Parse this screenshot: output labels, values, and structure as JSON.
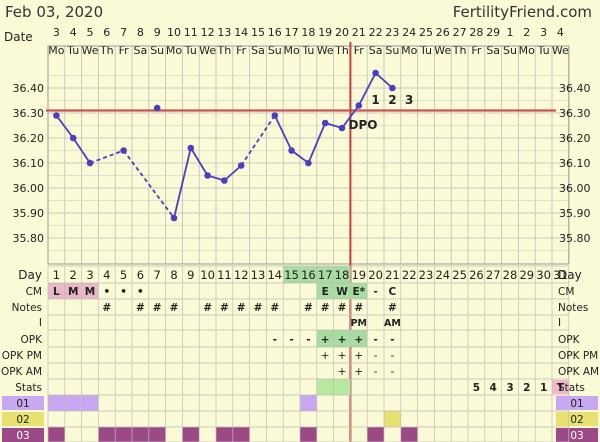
{
  "header": {
    "date": "Feb 03, 2020",
    "site": "FertilityFriend.com"
  },
  "chart_data": {
    "type": "line",
    "title": "",
    "ylim": [
      35.7,
      36.5
    ],
    "yticks": [
      "36.40",
      "36.30",
      "36.20",
      "36.10",
      "36.00",
      "35.90",
      "35.80"
    ],
    "row_labels": {
      "date": "Date",
      "day": "Day",
      "cm": "CM",
      "notes": "Notes",
      "i": "I",
      "opk": "OPK",
      "opk_pm": "OPK PM",
      "opk_am": "OPK AM",
      "stats": "Stats",
      "r01": "01",
      "r02": "02",
      "r03": "03"
    },
    "dates": [
      "3",
      "4",
      "5",
      "6",
      "7",
      "8",
      "9",
      "10",
      "11",
      "12",
      "13",
      "14",
      "15",
      "16",
      "17",
      "18",
      "19",
      "20",
      "21",
      "22",
      "23",
      "24",
      "25",
      "26",
      "27",
      "28",
      "29",
      "1",
      "2",
      "3",
      "4"
    ],
    "weekdays": [
      "Mo",
      "Tu",
      "We",
      "Th",
      "Fr",
      "Sa",
      "Su",
      "Mo",
      "Tu",
      "We",
      "Th",
      "Fr",
      "Sa",
      "Su",
      "Mo",
      "Tu",
      "We",
      "Th",
      "Fr",
      "Sa",
      "Su",
      "Mo",
      "Tu",
      "We",
      "Th",
      "Fr",
      "Sa",
      "Su",
      "Mo",
      "Tu",
      "We"
    ],
    "cycle_days": [
      "1",
      "2",
      "3",
      "4",
      "5",
      "6",
      "7",
      "8",
      "9",
      "10",
      "11",
      "12",
      "13",
      "14",
      "15",
      "16",
      "17",
      "18",
      "19",
      "20",
      "21",
      "22",
      "23",
      "24",
      "25",
      "26",
      "27",
      "28",
      "29",
      "30",
      "31"
    ],
    "temps": [
      36.29,
      36.2,
      36.1,
      null,
      36.15,
      null,
      36.32,
      35.88,
      36.16,
      36.05,
      36.03,
      36.09,
      null,
      36.29,
      36.15,
      36.1,
      36.26,
      36.24,
      36.33,
      36.46,
      36.4
    ],
    "discarded_day": 7,
    "coverline": 36.31,
    "ovulation_day": 18,
    "dpo_labels": [
      {
        "day": 20,
        "text": "1"
      },
      {
        "day": 21,
        "text": "2"
      },
      {
        "day": 22,
        "text": "3"
      }
    ],
    "dpo_text": "DPO",
    "cm": {
      "1": "L",
      "2": "M",
      "3": "M",
      "4": "•",
      "5": "•",
      "6": "•",
      "17": "E",
      "18": "W",
      "19": "E*",
      "20": "-",
      "21": "C"
    },
    "notes": {
      "4": "#",
      "6": "#",
      "7": "#",
      "8": "#",
      "10": "#",
      "11": "#",
      "12": "#",
      "13": "#",
      "14": "#",
      "16": "#",
      "17": "#",
      "18": "#",
      "19": "#",
      "21": "#"
    },
    "intercourse": {
      "19": "PM",
      "21": "AM"
    },
    "opk": {
      "14": "-",
      "15": "-",
      "16": "-",
      "17": "+",
      "18": "+",
      "19": "+",
      "20": "-",
      "21": "-"
    },
    "opk_pm": {
      "17": "+",
      "18": "+",
      "19": "+",
      "20": "-",
      "21": "-"
    },
    "opk_am": {
      "18": "+",
      "19": "+",
      "20": "-",
      "21": "-"
    },
    "stats": {
      "26": "5",
      "27": "4",
      "28": "3",
      "29": "2",
      "30": "1",
      "31": "T"
    },
    "colors": {
      "bg": "#fafad6",
      "grid": "#bdbdbd",
      "temp_line": "#4a3fbf",
      "coverline": "#cc5555",
      "ovulation_line": "#c24040",
      "day_highlight": "#a8dca0",
      "cm_menses": "#e8b8c8",
      "row01": "#c8a8f0",
      "row02": "#e8e070",
      "row03": "#9c4a86",
      "stats_T": "#f0b8c8",
      "stats_green": "#b8e8a0"
    },
    "row01_days": [
      1,
      2,
      3,
      16
    ],
    "row02_days": [
      21
    ],
    "row03_days": [
      1,
      4,
      5,
      6,
      7,
      9,
      11,
      12,
      16,
      20,
      22
    ]
  }
}
